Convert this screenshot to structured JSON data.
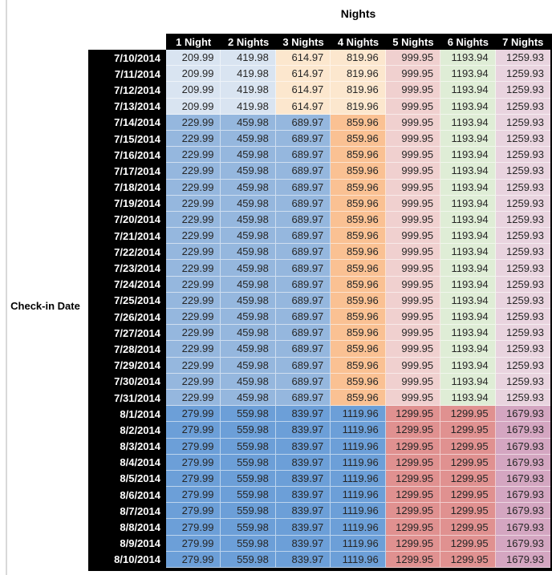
{
  "page": {
    "column_axis_title": "Nights",
    "row_axis_label": "Check-in Date"
  },
  "table": {
    "columns": [
      "1 Night",
      "2 Nights",
      "3 Nights",
      "4 Nights",
      "5 Nights",
      "6 Nights",
      "7 Nights"
    ],
    "rows": [
      {
        "date": "7/10/2014",
        "tier": "A",
        "values": [
          "209.99",
          "419.98",
          "614.97",
          "819.96",
          "999.95",
          "1193.94",
          "1259.93"
        ]
      },
      {
        "date": "7/11/2014",
        "tier": "A",
        "values": [
          "209.99",
          "419.98",
          "614.97",
          "819.96",
          "999.95",
          "1193.94",
          "1259.93"
        ]
      },
      {
        "date": "7/12/2014",
        "tier": "A",
        "values": [
          "209.99",
          "419.98",
          "614.97",
          "819.96",
          "999.95",
          "1193.94",
          "1259.93"
        ]
      },
      {
        "date": "7/13/2014",
        "tier": "A",
        "values": [
          "209.99",
          "419.98",
          "614.97",
          "819.96",
          "999.95",
          "1193.94",
          "1259.93"
        ]
      },
      {
        "date": "7/14/2014",
        "tier": "B",
        "values": [
          "229.99",
          "459.98",
          "689.97",
          "859.96",
          "999.95",
          "1193.94",
          "1259.93"
        ]
      },
      {
        "date": "7/15/2014",
        "tier": "B",
        "values": [
          "229.99",
          "459.98",
          "689.97",
          "859.96",
          "999.95",
          "1193.94",
          "1259.93"
        ]
      },
      {
        "date": "7/16/2014",
        "tier": "B",
        "values": [
          "229.99",
          "459.98",
          "689.97",
          "859.96",
          "999.95",
          "1193.94",
          "1259.93"
        ]
      },
      {
        "date": "7/17/2014",
        "tier": "B",
        "values": [
          "229.99",
          "459.98",
          "689.97",
          "859.96",
          "999.95",
          "1193.94",
          "1259.93"
        ]
      },
      {
        "date": "7/18/2014",
        "tier": "B",
        "values": [
          "229.99",
          "459.98",
          "689.97",
          "859.96",
          "999.95",
          "1193.94",
          "1259.93"
        ]
      },
      {
        "date": "7/19/2014",
        "tier": "B",
        "values": [
          "229.99",
          "459.98",
          "689.97",
          "859.96",
          "999.95",
          "1193.94",
          "1259.93"
        ]
      },
      {
        "date": "7/20/2014",
        "tier": "B",
        "values": [
          "229.99",
          "459.98",
          "689.97",
          "859.96",
          "999.95",
          "1193.94",
          "1259.93"
        ]
      },
      {
        "date": "7/21/2014",
        "tier": "B",
        "values": [
          "229.99",
          "459.98",
          "689.97",
          "859.96",
          "999.95",
          "1193.94",
          "1259.93"
        ]
      },
      {
        "date": "7/22/2014",
        "tier": "B",
        "values": [
          "229.99",
          "459.98",
          "689.97",
          "859.96",
          "999.95",
          "1193.94",
          "1259.93"
        ]
      },
      {
        "date": "7/23/2014",
        "tier": "B",
        "values": [
          "229.99",
          "459.98",
          "689.97",
          "859.96",
          "999.95",
          "1193.94",
          "1259.93"
        ]
      },
      {
        "date": "7/24/2014",
        "tier": "B",
        "values": [
          "229.99",
          "459.98",
          "689.97",
          "859.96",
          "999.95",
          "1193.94",
          "1259.93"
        ]
      },
      {
        "date": "7/25/2014",
        "tier": "B",
        "values": [
          "229.99",
          "459.98",
          "689.97",
          "859.96",
          "999.95",
          "1193.94",
          "1259.93"
        ]
      },
      {
        "date": "7/26/2014",
        "tier": "B",
        "values": [
          "229.99",
          "459.98",
          "689.97",
          "859.96",
          "999.95",
          "1193.94",
          "1259.93"
        ]
      },
      {
        "date": "7/27/2014",
        "tier": "B",
        "values": [
          "229.99",
          "459.98",
          "689.97",
          "859.96",
          "999.95",
          "1193.94",
          "1259.93"
        ]
      },
      {
        "date": "7/28/2014",
        "tier": "B",
        "values": [
          "229.99",
          "459.98",
          "689.97",
          "859.96",
          "999.95",
          "1193.94",
          "1259.93"
        ]
      },
      {
        "date": "7/29/2014",
        "tier": "B",
        "values": [
          "229.99",
          "459.98",
          "689.97",
          "859.96",
          "999.95",
          "1193.94",
          "1259.93"
        ]
      },
      {
        "date": "7/30/2014",
        "tier": "B",
        "values": [
          "229.99",
          "459.98",
          "689.97",
          "859.96",
          "999.95",
          "1193.94",
          "1259.93"
        ]
      },
      {
        "date": "7/31/2014",
        "tier": "B",
        "values": [
          "229.99",
          "459.98",
          "689.97",
          "859.96",
          "999.95",
          "1193.94",
          "1259.93"
        ]
      },
      {
        "date": "8/1/2014",
        "tier": "C",
        "values": [
          "279.99",
          "559.98",
          "839.97",
          "1119.96",
          "1299.95",
          "1299.95",
          "1679.93"
        ]
      },
      {
        "date": "8/2/2014",
        "tier": "C",
        "values": [
          "279.99",
          "559.98",
          "839.97",
          "1119.96",
          "1299.95",
          "1299.95",
          "1679.93"
        ]
      },
      {
        "date": "8/3/2014",
        "tier": "C",
        "values": [
          "279.99",
          "559.98",
          "839.97",
          "1119.96",
          "1299.95",
          "1299.95",
          "1679.93"
        ]
      },
      {
        "date": "8/4/2014",
        "tier": "C",
        "values": [
          "279.99",
          "559.98",
          "839.97",
          "1119.96",
          "1299.95",
          "1299.95",
          "1679.93"
        ]
      },
      {
        "date": "8/5/2014",
        "tier": "C",
        "values": [
          "279.99",
          "559.98",
          "839.97",
          "1119.96",
          "1299.95",
          "1299.95",
          "1679.93"
        ]
      },
      {
        "date": "8/6/2014",
        "tier": "C",
        "values": [
          "279.99",
          "559.98",
          "839.97",
          "1119.96",
          "1299.95",
          "1299.95",
          "1679.93"
        ]
      },
      {
        "date": "8/7/2014",
        "tier": "C",
        "values": [
          "279.99",
          "559.98",
          "839.97",
          "1119.96",
          "1299.95",
          "1299.95",
          "1679.93"
        ]
      },
      {
        "date": "8/8/2014",
        "tier": "C",
        "values": [
          "279.99",
          "559.98",
          "839.97",
          "1119.96",
          "1299.95",
          "1299.95",
          "1679.93"
        ]
      },
      {
        "date": "8/9/2014",
        "tier": "C",
        "values": [
          "279.99",
          "559.98",
          "839.97",
          "1119.96",
          "1299.95",
          "1299.95",
          "1679.93"
        ]
      },
      {
        "date": "8/10/2014",
        "tier": "C",
        "values": [
          "279.99",
          "559.98",
          "839.97",
          "1119.96",
          "1299.95",
          "1299.95",
          "1679.93"
        ]
      }
    ]
  },
  "colors": {
    "header_bg": "#000000",
    "header_text": "#FFFFFF",
    "value_text": "#262626",
    "pane_line": "#D9D9D9",
    "tiers": {
      "A": [
        "#D9E4F1",
        "#D9E4F1",
        "#FCE7CE",
        "#FCE7CE",
        "#F0D0CF",
        "#DFEDD6",
        "#E9D4DF"
      ],
      "B": [
        "#95B7DE",
        "#95B7DE",
        "#95B7DE",
        "#FAC193",
        "#F0D0CF",
        "#DFEDD6",
        "#E9D4DF"
      ],
      "C": [
        "#6C9FD8",
        "#6C9FD8",
        "#6C9FD8",
        "#6C9FD8",
        "#E09190",
        "#E09190",
        "#D4A6C1"
      ]
    }
  }
}
